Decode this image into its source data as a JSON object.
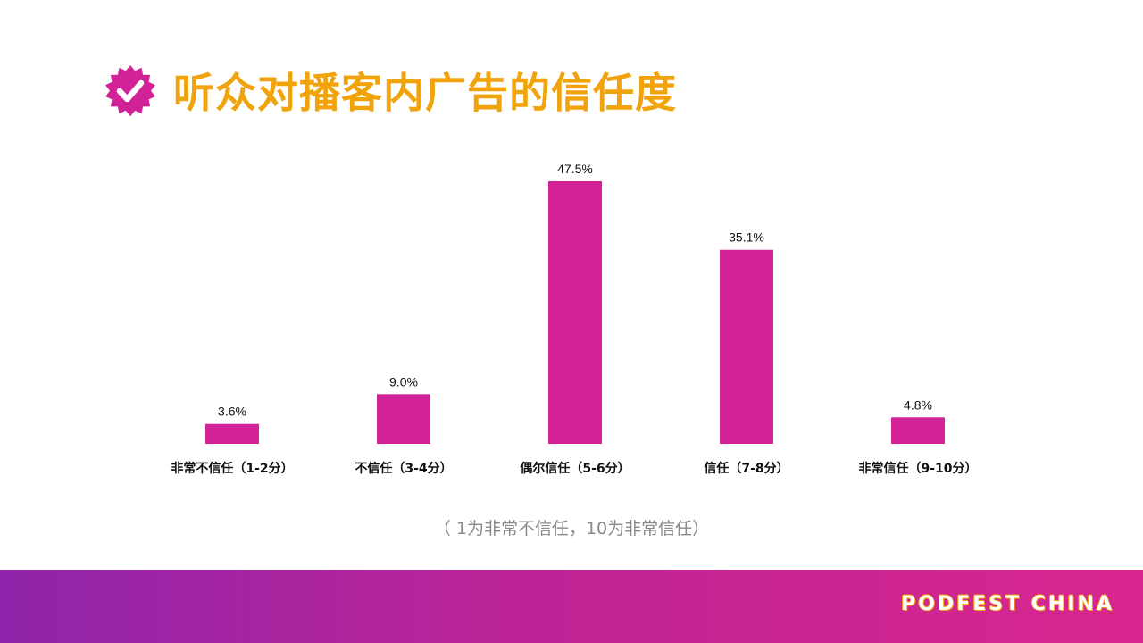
{
  "header": {
    "title": "听众对播客内广告的信任度",
    "icon": "verified-badge-icon",
    "icon_color": "#d12397",
    "title_color": "#f0a30a"
  },
  "chart_data": {
    "type": "bar",
    "categories": [
      "非常不信任（1-2分）",
      "不信任（3-4分）",
      "偶尔信任（5-6分）",
      "信任（7-8分）",
      "非常信任（9-10分）"
    ],
    "values": [
      3.6,
      9.0,
      47.5,
      35.1,
      4.8
    ],
    "value_labels": [
      "3.6%",
      "9.0%",
      "47.5%",
      "35.1%",
      "4.8%"
    ],
    "title": "听众对播客内广告的信任度",
    "xlabel": "",
    "ylabel": "",
    "ylim": [
      0,
      47.5
    ],
    "grid": false,
    "legend": "none",
    "bar_color": "#d12397"
  },
  "note": "（ 1为非常不信任，10为非常信任）",
  "footer": {
    "brand": "PODFEST CHINA"
  }
}
